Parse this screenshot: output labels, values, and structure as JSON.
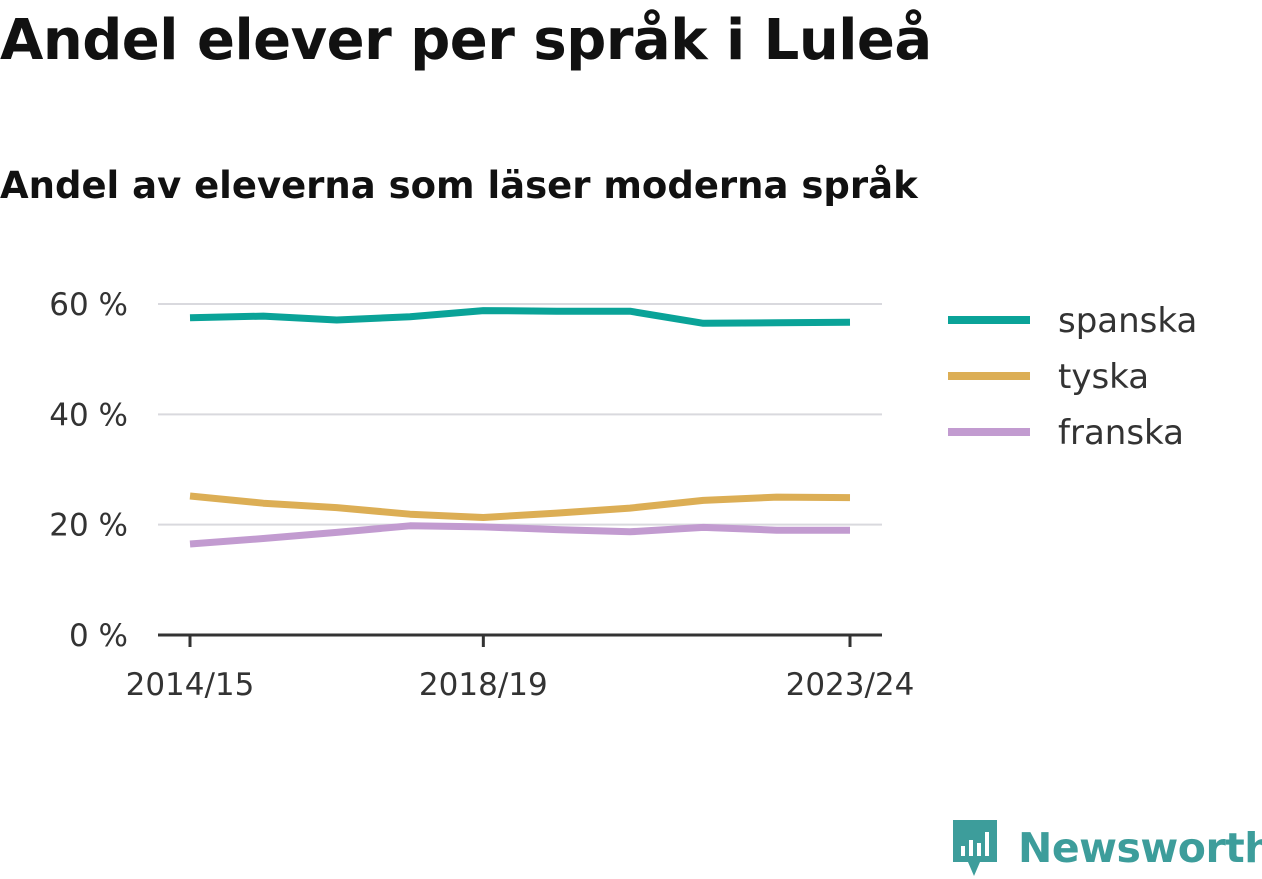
{
  "title": "Andel elever per språk i Luleå",
  "subtitle": "Andel av eleverna som läser moderna språk",
  "brand": {
    "name": "Newsworthy",
    "color": "#3d9d9b",
    "icon": "bar-chart-speech-bubble-icon"
  },
  "chart_data": {
    "type": "line",
    "title": "Andel elever per språk i Luleå",
    "subtitle": "Andel av eleverna som läser moderna språk",
    "x": [
      "2014/15",
      "2015/16",
      "2016/17",
      "2017/18",
      "2018/19",
      "2019/20",
      "2020/21",
      "2021/22",
      "2022/23",
      "2023/24"
    ],
    "x_tick_labels": [
      "2014/15",
      "2018/19",
      "2023/24"
    ],
    "y_tick_labels": [
      "0 %",
      "20 %",
      "40 %",
      "60 %"
    ],
    "y_ticks": [
      0,
      20,
      40,
      60
    ],
    "ylim": [
      0,
      60
    ],
    "grid": true,
    "legend_position": "right",
    "series": [
      {
        "name": "spanska",
        "color": "#0aa398",
        "values": [
          57.5,
          57.8,
          57.1,
          57.7,
          58.8,
          58.7,
          58.7,
          56.5,
          56.6,
          56.7
        ]
      },
      {
        "name": "tyska",
        "color": "#dcae55",
        "values": [
          25.2,
          23.9,
          23.1,
          21.9,
          21.3,
          22.1,
          23.0,
          24.4,
          25.0,
          24.9
        ]
      },
      {
        "name": "franska",
        "color": "#c29bd0",
        "values": [
          16.5,
          17.5,
          18.6,
          19.8,
          19.6,
          19.1,
          18.7,
          19.5,
          19.0,
          19.0
        ]
      }
    ]
  }
}
